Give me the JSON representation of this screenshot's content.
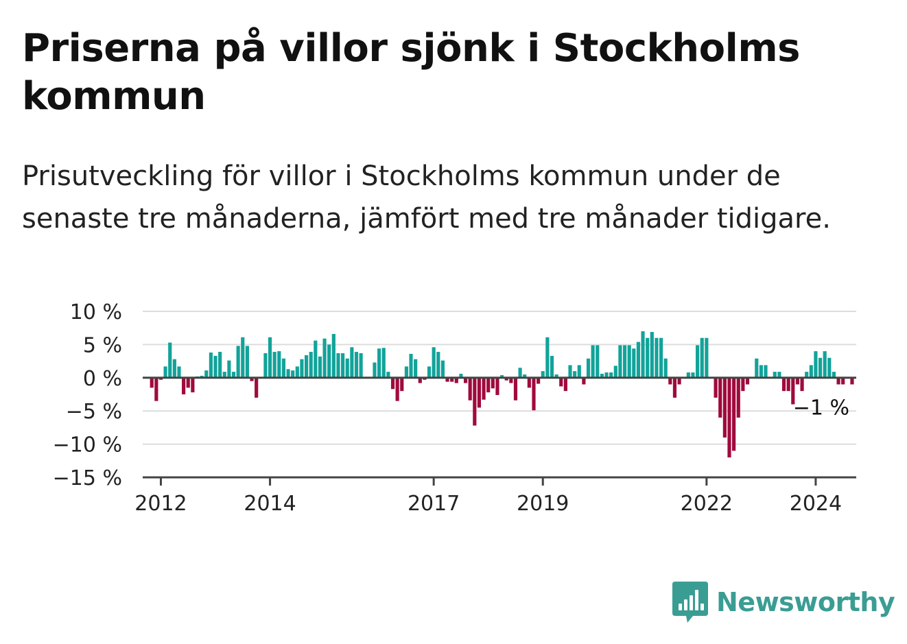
{
  "title": "Priserna på villor sjönk i Stockholms kommun",
  "subtitle": "Prisutveckling för villor i Stockholms kommun under de senaste tre månaderna, jämfört med tre månader tidigare.",
  "brand": {
    "name": "Newsworthy",
    "icon": "bar-chart-logo-icon",
    "color": "#3a9d93"
  },
  "colors": {
    "positive": "#12a39a",
    "negative": "#a00a3c",
    "zero_line": "#444444",
    "grid": "#dddddd"
  },
  "chart_data": {
    "type": "bar",
    "ylim": [
      -15,
      10
    ],
    "y_ticks": [
      {
        "value": 10,
        "label": "10 %"
      },
      {
        "value": 5,
        "label": "5 %"
      },
      {
        "value": 0,
        "label": "0 %"
      },
      {
        "value": -5,
        "label": "−5 %"
      },
      {
        "value": -10,
        "label": "−10 %"
      },
      {
        "value": -15,
        "label": "−15 %"
      }
    ],
    "x_ticks": [
      {
        "year": 2012,
        "label": "2012"
      },
      {
        "year": 2014,
        "label": "2014"
      },
      {
        "year": 2017,
        "label": "2017"
      },
      {
        "year": 2019,
        "label": "2019"
      },
      {
        "year": 2022,
        "label": "2022"
      },
      {
        "year": 2024,
        "label": "2024"
      }
    ],
    "start": "2011-10",
    "grid": true,
    "end_label": "−1 %",
    "values": [
      0,
      -1.5,
      -3.5,
      -0.3,
      1.7,
      5.3,
      2.8,
      1.7,
      -2.5,
      -1.5,
      -2.2,
      0.2,
      0.3,
      1.1,
      3.8,
      3.3,
      3.9,
      0.9,
      2.6,
      0.9,
      4.8,
      6.1,
      4.8,
      -0.5,
      -3.0,
      0.0,
      3.7,
      6.1,
      3.9,
      4.0,
      2.9,
      1.3,
      1.1,
      1.7,
      2.8,
      3.4,
      3.9,
      5.6,
      3.2,
      5.9,
      5.0,
      6.6,
      3.7,
      3.7,
      2.9,
      4.6,
      3.9,
      3.7,
      0,
      0,
      2.3,
      4.4,
      4.5,
      0.9,
      -1.7,
      -3.5,
      -2.0,
      1.7,
      3.6,
      2.8,
      -0.8,
      -0.3,
      1.7,
      4.6,
      3.9,
      2.6,
      -0.6,
      -0.6,
      -0.8,
      0.6,
      -0.8,
      -3.4,
      -7.2,
      -4.5,
      -3.3,
      -2.2,
      -1.6,
      -2.6,
      0.4,
      -0.4,
      -0.8,
      -3.4,
      1.5,
      0.5,
      -1.5,
      -4.9,
      -0.9,
      1.0,
      6.1,
      3.3,
      0.5,
      -1.3,
      -2.0,
      1.9,
      1.0,
      1.9,
      -1.0,
      2.9,
      4.9,
      4.9,
      0.6,
      0.8,
      0.8,
      1.8,
      4.9,
      4.9,
      4.9,
      4.4,
      5.4,
      7.0,
      6.0,
      6.9,
      6.0,
      6.0,
      2.9,
      -1.0,
      -3.0,
      -1.0,
      0,
      0.8,
      0.8,
      4.9,
      6.0,
      6.0,
      0,
      -3.0,
      -6.0,
      -9.0,
      -12.0,
      -11.0,
      -6.0,
      -2.0,
      -1.0,
      0,
      2.9,
      1.9,
      1.9,
      0,
      0.9,
      0.9,
      -2.0,
      -2.0,
      -4.0,
      -1.0,
      -2.0,
      0.9,
      1.9,
      4.0,
      3.0,
      4.0,
      3.0,
      0.9,
      -1.0,
      -1.0,
      0,
      -1.0
    ]
  }
}
